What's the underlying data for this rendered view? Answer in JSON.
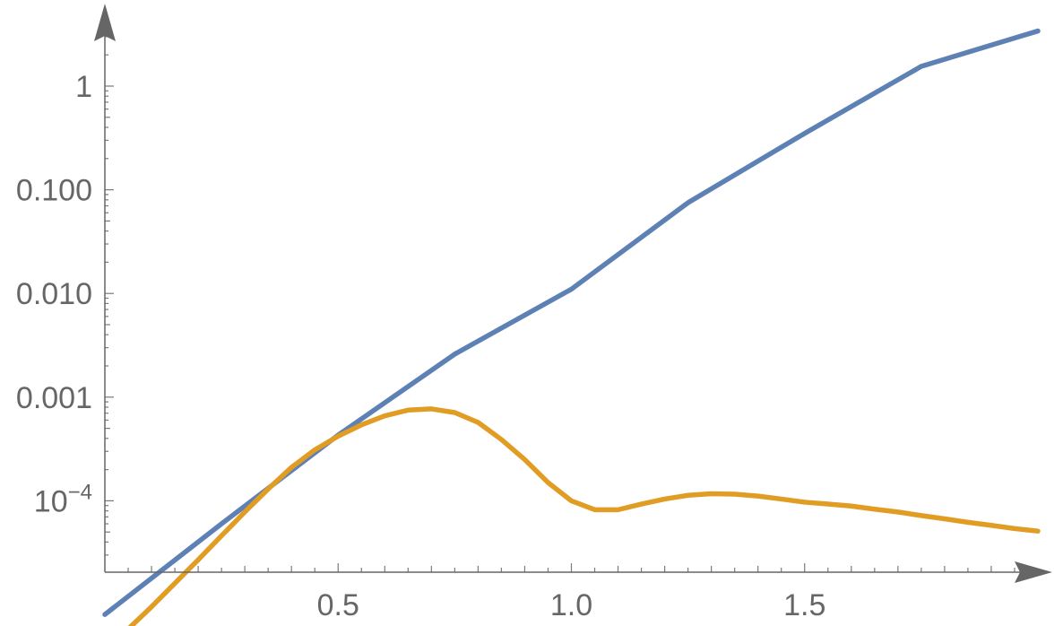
{
  "chart_data": {
    "type": "line",
    "title": "",
    "xlabel": "",
    "ylabel": "",
    "y_scale": "log",
    "xlim": [
      0,
      2.0
    ],
    "ylim": [
      5e-06,
      5
    ],
    "grid": false,
    "x_ticks": [
      {
        "value": 0.5,
        "label": "0.5"
      },
      {
        "value": 1.0,
        "label": "1.0"
      },
      {
        "value": 1.5,
        "label": "1.5"
      }
    ],
    "y_ticks": [
      {
        "value": 1,
        "label": "1",
        "exp": ""
      },
      {
        "value": 0.1,
        "label": "0.100",
        "exp": ""
      },
      {
        "value": 0.01,
        "label": "0.010",
        "exp": ""
      },
      {
        "value": 0.001,
        "label": "0.001",
        "exp": ""
      },
      {
        "value": 0.0001,
        "label": "10",
        "exp": "−4"
      }
    ],
    "series": [
      {
        "color": "#5e81b5",
        "x": [
          0,
          0.25,
          0.5,
          0.75,
          1.0,
          1.25,
          1.5,
          1.75,
          2.0
        ],
        "y": [
          8e-06,
          6e-05,
          0.00043,
          0.0026,
          0.011,
          0.075,
          0.35,
          1.55,
          3.4
        ]
      },
      {
        "color": "#e19c24",
        "x": [
          0,
          0.05,
          0.1,
          0.15,
          0.2,
          0.25,
          0.3,
          0.35,
          0.4,
          0.45,
          0.5,
          0.55,
          0.6,
          0.65,
          0.7,
          0.75,
          0.8,
          0.85,
          0.9,
          0.95,
          1.0,
          1.05,
          1.1,
          1.15,
          1.2,
          1.25,
          1.3,
          1.35,
          1.4,
          1.45,
          1.5,
          1.55,
          1.6,
          1.65,
          1.7,
          1.75,
          1.8,
          1.85,
          1.9,
          1.95,
          2.0
        ],
        "y": [
          5e-06,
          5.8e-06,
          9.5e-06,
          1.6e-05,
          2.7e-05,
          4.6e-05,
          7.8e-05,
          0.00013,
          0.00021,
          0.00031,
          0.00042,
          0.00054,
          0.00066,
          0.00075,
          0.00077,
          0.00071,
          0.00057,
          0.00039,
          0.00025,
          0.00015,
          0.0001,
          8.2e-05,
          8.2e-05,
          9.3e-05,
          0.000104,
          0.000113,
          0.000117,
          0.000116,
          0.000111,
          0.000104,
          9.7e-05,
          9.3e-05,
          8.9e-05,
          8.3e-05,
          7.8e-05,
          7.2e-05,
          6.7e-05,
          6.2e-05,
          5.8e-05,
          5.4e-05,
          5.1e-05
        ]
      }
    ]
  }
}
